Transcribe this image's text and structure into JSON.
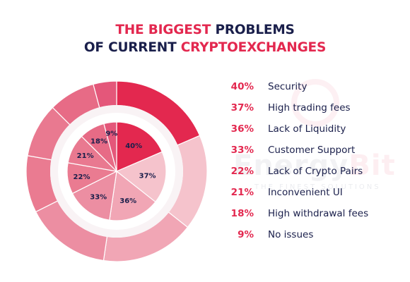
{
  "title": {
    "line1_highlight": "THE BIGGEST",
    "line1_rest": "PROBLEMS",
    "line2_rest": "OF CURRENT",
    "line2_highlight": "CRYPTOEXCHANGES"
  },
  "watermark": {
    "brand_a": "Ener",
    "brand_b": "gy",
    "brand_c": "Bit",
    "tagline": "THE FINEST SOLUTIONS"
  },
  "colors": {
    "accent": "#e3284f",
    "navy": "#1a1f4b",
    "ring_background": "#f9f3f5"
  },
  "chart_data": {
    "type": "pie",
    "title": "THE BIGGEST PROBLEMS OF CURRENT CRYPTOEXCHANGES",
    "categories": [
      "Security",
      "High trading fees",
      "Lack of Liquidity",
      "Customer Support",
      "Lack of Crypto Pairs",
      "Inconvenient UI",
      "High withdrawal fees",
      "No issues"
    ],
    "values": [
      40,
      37,
      36,
      33,
      22,
      21,
      18,
      9
    ],
    "value_labels": [
      "40%",
      "37%",
      "36%",
      "33%",
      "22%",
      "21%",
      "18%",
      "9%"
    ],
    "colors": [
      "#e3284f",
      "#f5c3cc",
      "#f1a6b5",
      "#ec8ea2",
      "#ea7b91",
      "#e97990",
      "#e76b86",
      "#e4577a"
    ],
    "legend_position": "right"
  }
}
